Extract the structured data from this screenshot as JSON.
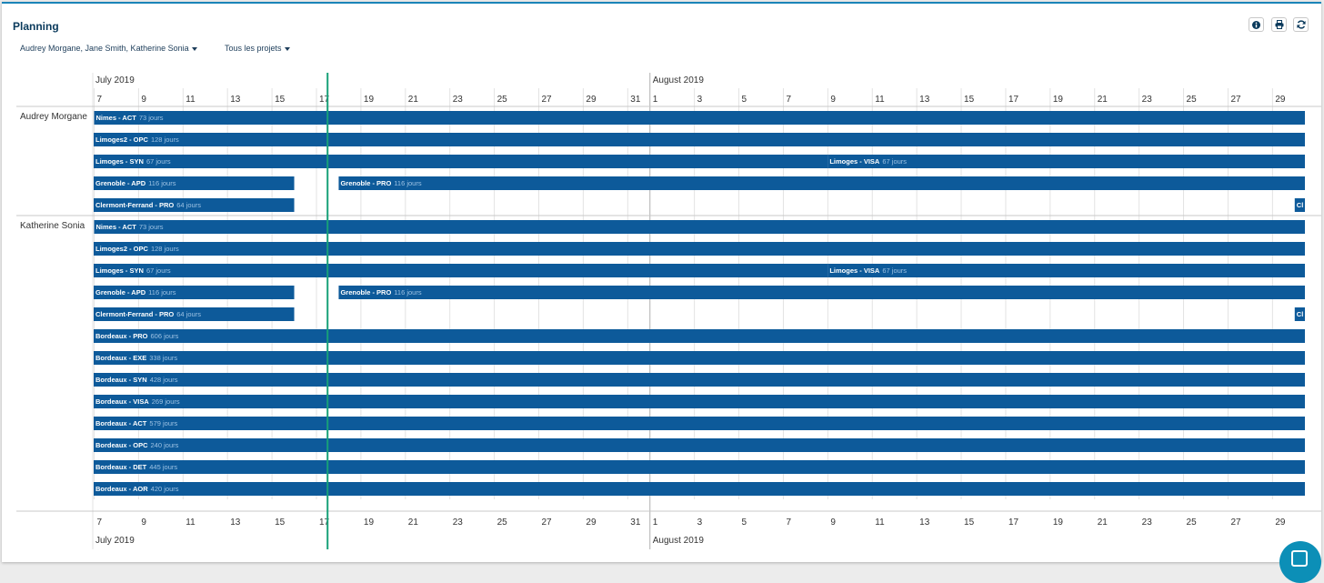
{
  "header": {
    "title": "Planning",
    "icons": [
      "info-icon",
      "print-icon",
      "refresh-icon"
    ]
  },
  "filters": {
    "people": "Audrey Morgane, Jane Smith, Katherine Sonia",
    "projects": "Tous les projets"
  },
  "timeline": {
    "months": [
      {
        "label": "July 2019",
        "days": [
          "7",
          "9",
          "11",
          "13",
          "15",
          "17",
          "19",
          "21",
          "23",
          "25",
          "27",
          "29",
          "31"
        ]
      },
      {
        "label": "August 2019",
        "days": [
          "1",
          "3",
          "5",
          "7",
          "9",
          "11",
          "13",
          "15",
          "17",
          "19",
          "21",
          "23",
          "25",
          "27",
          "29"
        ]
      }
    ],
    "today_marker": "2019-07-16"
  },
  "colors": {
    "bar": "#0d5a9a",
    "today_line": "#17a078",
    "bar_text": "#ffffff",
    "bar_duration_text": "#9ec3e4",
    "grid": "#e3e3e3",
    "month_divider": "#b0b0b0"
  },
  "resources": [
    {
      "name": "Audrey Morgane",
      "rows": [
        [
          {
            "label": "Nimes - ACT",
            "duration": "73 jours",
            "start": "2019-07-07",
            "end": "after"
          }
        ],
        [
          {
            "label": "Limoges2 - OPC",
            "duration": "128 jours",
            "start": "before",
            "end": "after"
          }
        ],
        [
          {
            "label": "Limoges - SYN",
            "duration": "67 jours",
            "start": "before",
            "end": "2019-08-07"
          },
          {
            "label": "Limoges - VISA",
            "duration": "67 jours",
            "start": "2019-08-09",
            "end": "after"
          }
        ],
        [
          {
            "label": "Grenoble - APD",
            "duration": "116 jours",
            "start": "before",
            "end": "2019-07-14"
          },
          {
            "label": "Grenoble - PRO",
            "duration": "116 jours",
            "start": "2019-07-18",
            "end": "after"
          }
        ],
        [
          {
            "label": "Clermont-Ferrand - PRO",
            "duration": "64 jours",
            "start": "before",
            "end": "2019-07-14"
          },
          {
            "label": "Cl",
            "duration": "",
            "start": "2019-08-30",
            "end": "after"
          }
        ]
      ]
    },
    {
      "name": "Katherine Sonia",
      "rows": [
        [
          {
            "label": "Nimes - ACT",
            "duration": "73 jours",
            "start": "2019-07-07",
            "end": "after"
          }
        ],
        [
          {
            "label": "Limoges2 - OPC",
            "duration": "128 jours",
            "start": "before",
            "end": "after"
          }
        ],
        [
          {
            "label": "Limoges - SYN",
            "duration": "67 jours",
            "start": "before",
            "end": "2019-08-07"
          },
          {
            "label": "Limoges - VISA",
            "duration": "67 jours",
            "start": "2019-08-09",
            "end": "after"
          }
        ],
        [
          {
            "label": "Grenoble - APD",
            "duration": "116 jours",
            "start": "before",
            "end": "2019-07-14"
          },
          {
            "label": "Grenoble - PRO",
            "duration": "116 jours",
            "start": "2019-07-18",
            "end": "after"
          }
        ],
        [
          {
            "label": "Clermont-Ferrand - PRO",
            "duration": "64 jours",
            "start": "before",
            "end": "2019-07-14"
          },
          {
            "label": "Cl",
            "duration": "",
            "start": "2019-08-30",
            "end": "after"
          }
        ],
        [
          {
            "label": "Bordeaux - PRO",
            "duration": "606 jours",
            "start": "before",
            "end": "after"
          }
        ],
        [
          {
            "label": "Bordeaux - EXE",
            "duration": "338 jours",
            "start": "before",
            "end": "after"
          }
        ],
        [
          {
            "label": "Bordeaux - SYN",
            "duration": "428 jours",
            "start": "before",
            "end": "after"
          }
        ],
        [
          {
            "label": "Bordeaux - VISA",
            "duration": "269 jours",
            "start": "before",
            "end": "after"
          }
        ],
        [
          {
            "label": "Bordeaux - ACT",
            "duration": "579 jours",
            "start": "before",
            "end": "after"
          }
        ],
        [
          {
            "label": "Bordeaux - OPC",
            "duration": "240 jours",
            "start": "before",
            "end": "after"
          }
        ],
        [
          {
            "label": "Bordeaux - DET",
            "duration": "445 jours",
            "start": "before",
            "end": "after"
          }
        ],
        [
          {
            "label": "Bordeaux - AOR",
            "duration": "420 jours",
            "start": "before",
            "end": "after"
          }
        ]
      ]
    }
  ]
}
